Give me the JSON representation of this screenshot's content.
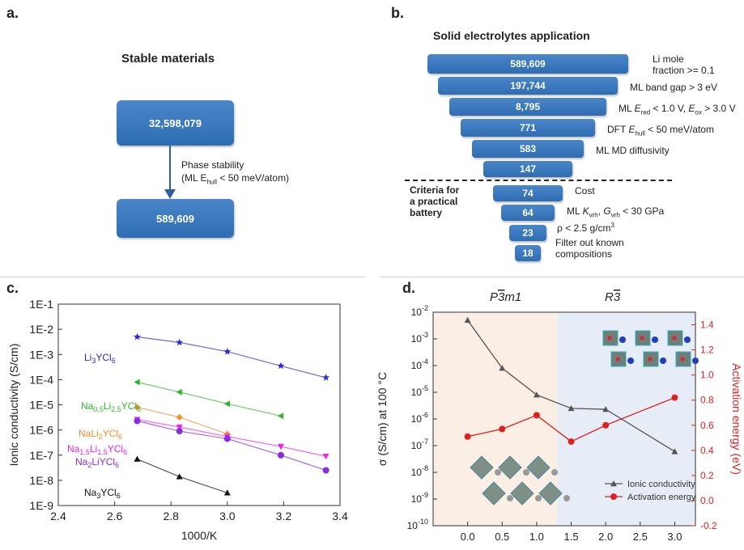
{
  "panel_a": {
    "letter": "a.",
    "title": "Stable materials",
    "top_box": "32,598,079",
    "bottom_box": "589,609",
    "arrow_label_line1": "Phase stability",
    "arrow_label_line2_prefix": "(ML E",
    "arrow_label_line2_sub": "hull",
    "arrow_label_line2_suffix": " < 50 meV/atom)"
  },
  "panel_b": {
    "letter": "b.",
    "title": "Solid electrolytes application",
    "bars": [
      {
        "value": "589,609",
        "criterion": "Li mole\nfraction >= 0.1"
      },
      {
        "value": "197,744",
        "criterion": "ML band gap > 3 eV"
      },
      {
        "value": "8,795",
        "criterion": "ML E_red < 1.0 V, E_ox > 3.0 V"
      },
      {
        "value": "771",
        "criterion": "DFT E_hull < 50 meV/atom"
      },
      {
        "value": "583",
        "criterion": "ML MD diffusivity"
      },
      {
        "value": "147",
        "criterion": ""
      },
      {
        "value": "74",
        "criterion": "Cost"
      },
      {
        "value": "64",
        "criterion": "ML K_vrh, G_vrh < 30 GPa"
      },
      {
        "value": "23",
        "criterion": "ρ < 2.5 g/cm3"
      },
      {
        "value": "18",
        "criterion": "Filter out known\ncompositions"
      }
    ],
    "practical_label_line1": "Criteria for",
    "practical_label_line2": "a practical",
    "practical_label_line3": "battery"
  },
  "chart_data": [
    {
      "panel": "c.",
      "type": "line",
      "xlabel": "1000/K",
      "ylabel": "Ionic conductivity (S/cm)",
      "xlim": [
        2.4,
        3.4
      ],
      "ylim_log10": [
        -9,
        -1
      ],
      "yscale": "log",
      "x_ticks": [
        "2.4",
        "2.6",
        "2.8",
        "3.0",
        "3.2",
        "3.4"
      ],
      "y_ticks": [
        "1E-9",
        "1E-8",
        "1E-7",
        "1E-6",
        "1E-5",
        "1E-4",
        "1E-3",
        "1E-2",
        "1E-1"
      ],
      "series": [
        {
          "name": "Li3YCl6",
          "color": "#2b2bd6",
          "marker": "star",
          "x": [
            2.68,
            2.83,
            3.0,
            3.19,
            3.35
          ],
          "y": [
            0.005,
            0.003,
            0.0013,
            0.00035,
            0.00012
          ]
        },
        {
          "name": "Na0.5Li2.5YCl6",
          "color": "#2fb82f",
          "marker": "triangle-left",
          "x": [
            2.68,
            2.83,
            3.0,
            3.19
          ],
          "y": [
            8e-05,
            3.2e-05,
            1.1e-05,
            3.6e-06
          ]
        },
        {
          "name": "NaLi2YCl6",
          "color": "#f0902a",
          "marker": "diamond",
          "x": [
            2.68,
            2.83,
            3.0
          ],
          "y": [
            8e-06,
            3.2e-06,
            7e-07
          ]
        },
        {
          "name": "Na1.5Li1.5YCl6",
          "color": "#f020f0",
          "marker": "triangle-down",
          "x": [
            2.68,
            2.83,
            3.0,
            3.19,
            3.35
          ],
          "y": [
            2.6e-06,
            1.3e-06,
            5.5e-07,
            2.2e-07,
            9e-08
          ]
        },
        {
          "name": "Na2LiYCl6",
          "color": "#8a2be2",
          "marker": "circle",
          "x": [
            2.68,
            2.83,
            3.0,
            3.19,
            3.35
          ],
          "y": [
            2.3e-06,
            9e-07,
            4.5e-07,
            1e-07,
            2.5e-08
          ]
        },
        {
          "name": "Na3YCl6",
          "color": "#111111",
          "marker": "triangle-up",
          "x": [
            2.68,
            2.83,
            3.0
          ],
          "y": [
            7e-08,
            1.4e-08,
            3.2e-09
          ]
        }
      ]
    },
    {
      "panel": "d.",
      "type": "line",
      "xlabel": "Nominal x (NaxLi3-xYCl6)",
      "ylabel_left": "σ (S/cm) at 100 °C",
      "ylabel_right": "Activation energy (eV)",
      "xlim": [
        -0.5,
        3.3
      ],
      "ylim_left_log10": [
        -10,
        -2
      ],
      "ylim_right": [
        -0.2,
        1.5
      ],
      "x_ticks": [
        "0.0",
        "0.5",
        "1.0",
        "1.5",
        "2.0",
        "2.5",
        "3.0"
      ],
      "y_right_ticks": [
        "-0.2",
        "0.0",
        "0.2",
        "0.4",
        "0.6",
        "0.8",
        "1.0",
        "1.2",
        "1.4"
      ],
      "phase_labels": [
        "P3m1",
        "R3"
      ],
      "phase_boundary_x": 1.3,
      "series": [
        {
          "name": "Ionic conductivity",
          "color": "#555555",
          "marker": "triangle-up",
          "axis": "left",
          "x": [
            0.0,
            0.5,
            1.0,
            1.5,
            2.0,
            3.0
          ],
          "y": [
            0.005,
            8e-05,
            8e-06,
            2.5e-06,
            2.3e-06,
            6e-08
          ]
        },
        {
          "name": "Activation energy",
          "color": "#e02020",
          "marker": "circle",
          "axis": "right",
          "x": [
            0.0,
            0.5,
            1.0,
            1.5,
            2.0,
            3.0
          ],
          "y": [
            0.51,
            0.57,
            0.68,
            0.47,
            0.6,
            0.82
          ]
        }
      ]
    }
  ]
}
